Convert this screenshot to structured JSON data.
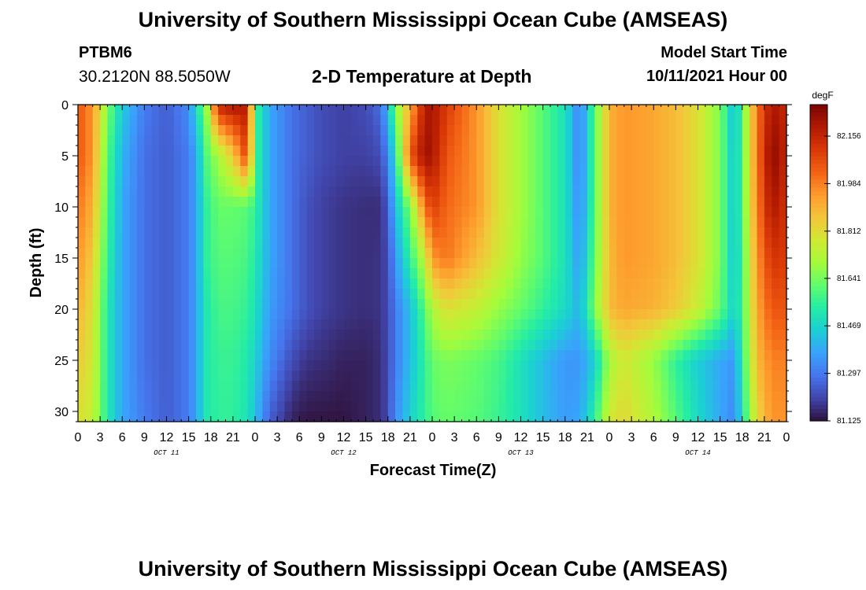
{
  "header": {
    "title": "University of Southern Mississippi Ocean Cube (AMSEAS)",
    "station_id": "PTBM6",
    "coordinates": "30.2120N  88.5050W",
    "chart_title": "2-D Temperature at Depth",
    "model_start_label": "Model Start Time",
    "model_start_value": "10/11/2021 Hour 00"
  },
  "footer": {
    "title": "University of Southern Mississippi Ocean Cube (AMSEAS)"
  },
  "chart_data": {
    "type": "heatmap",
    "title": "2-D Temperature at Depth",
    "xlabel": "Forecast Time(Z)",
    "ylabel": "Depth (ft)",
    "x_unit": "hours since model start",
    "xlim": [
      0,
      96
    ],
    "ylim": [
      0,
      31
    ],
    "y_inverted": true,
    "x_tick_labels": [
      "0",
      "3",
      "6",
      "9",
      "12",
      "15",
      "18",
      "21",
      "0",
      "3",
      "6",
      "9",
      "12",
      "15",
      "18",
      "21",
      "0",
      "3",
      "6",
      "9",
      "12",
      "15",
      "18",
      "21",
      "0",
      "3",
      "6",
      "9",
      "12",
      "15",
      "18",
      "21",
      "0"
    ],
    "day_labels": [
      {
        "label": "OCT 11",
        "hour": 12
      },
      {
        "label": "OCT 12",
        "hour": 36
      },
      {
        "label": "OCT 13",
        "hour": 60
      },
      {
        "label": "OCT 14",
        "hour": 84
      }
    ],
    "y_ticks": [
      0,
      5,
      10,
      15,
      20,
      25,
      30
    ],
    "colorbar": {
      "unit": "degF",
      "min": 81.125,
      "max": 82.27,
      "tick_values": [
        82.156,
        81.984,
        81.812,
        81.641,
        81.469,
        81.297,
        81.125
      ],
      "colors": [
        "#30123b",
        "#4145ab",
        "#4675ed",
        "#39a2fc",
        "#1bcfd4",
        "#24eca6",
        "#61fc6c",
        "#a4fc3b",
        "#d1e834",
        "#f3c63a",
        "#fe9b2d",
        "#f36315",
        "#d93806",
        "#b11901",
        "#7a0402"
      ]
    },
    "temperature_field_degF": {
      "hours": [
        0,
        2,
        4,
        6,
        9,
        12,
        15,
        16,
        17.5,
        19,
        21,
        23,
        24,
        26,
        29,
        31,
        33,
        36,
        39,
        41,
        42,
        43,
        45,
        47,
        48,
        50,
        54,
        57,
        60,
        63,
        66,
        68,
        70,
        72,
        74,
        78,
        81,
        84,
        87,
        89,
        90,
        92,
        94,
        96
      ],
      "depths_ft": [
        0,
        5,
        10,
        15,
        20,
        25,
        31
      ],
      "values": [
        [
          82.05,
          81.95,
          81.65,
          81.45,
          81.3,
          81.25,
          81.33,
          81.48,
          81.7,
          82.15,
          82.2,
          82.18,
          81.58,
          81.38,
          81.28,
          81.25,
          81.22,
          81.2,
          81.22,
          81.28,
          81.42,
          81.65,
          81.9,
          82.18,
          82.2,
          82.1,
          81.95,
          81.8,
          81.7,
          81.6,
          81.5,
          81.3,
          81.6,
          81.9,
          81.95,
          81.92,
          81.88,
          81.8,
          81.65,
          81.4,
          81.6,
          82.0,
          82.2,
          82.15
        ],
        [
          82.05,
          81.95,
          81.6,
          81.4,
          81.28,
          81.25,
          81.3,
          81.38,
          81.6,
          81.7,
          81.85,
          82.1,
          81.58,
          81.38,
          81.28,
          81.25,
          81.22,
          81.2,
          81.2,
          81.22,
          81.32,
          81.5,
          82.05,
          82.22,
          82.2,
          82.05,
          81.95,
          81.8,
          81.7,
          81.6,
          81.5,
          81.3,
          81.6,
          81.9,
          81.95,
          81.92,
          81.88,
          81.8,
          81.65,
          81.42,
          81.6,
          82.0,
          82.25,
          82.15
        ],
        [
          82.0,
          81.9,
          81.58,
          81.38,
          81.28,
          81.25,
          81.3,
          81.38,
          81.55,
          81.62,
          81.62,
          81.6,
          81.55,
          81.38,
          81.28,
          81.23,
          81.2,
          81.18,
          81.17,
          81.17,
          81.25,
          81.42,
          81.65,
          82.0,
          82.1,
          82.02,
          81.95,
          81.8,
          81.7,
          81.6,
          81.5,
          81.32,
          81.6,
          81.9,
          81.95,
          81.92,
          81.88,
          81.8,
          81.65,
          81.42,
          81.6,
          81.98,
          82.2,
          82.12
        ],
        [
          81.95,
          81.85,
          81.55,
          81.38,
          81.28,
          81.25,
          81.3,
          81.38,
          81.55,
          81.6,
          81.6,
          81.58,
          81.52,
          81.38,
          81.28,
          81.23,
          81.2,
          81.18,
          81.17,
          81.18,
          81.22,
          81.35,
          81.55,
          81.75,
          81.95,
          82.0,
          81.88,
          81.78,
          81.68,
          81.6,
          81.5,
          81.35,
          81.62,
          81.88,
          81.95,
          81.92,
          81.88,
          81.8,
          81.65,
          81.42,
          81.58,
          81.95,
          82.12,
          82.1
        ],
        [
          81.9,
          81.8,
          81.52,
          81.38,
          81.28,
          81.25,
          81.3,
          81.38,
          81.52,
          81.58,
          81.58,
          81.55,
          81.5,
          81.36,
          81.28,
          81.23,
          81.2,
          81.18,
          81.17,
          81.18,
          81.22,
          81.3,
          81.42,
          81.6,
          81.72,
          81.8,
          81.75,
          81.68,
          81.62,
          81.55,
          81.48,
          81.4,
          81.65,
          81.88,
          81.92,
          81.9,
          81.85,
          81.76,
          81.62,
          81.45,
          81.58,
          81.92,
          82.05,
          82.05
        ],
        [
          81.85,
          81.78,
          81.52,
          81.38,
          81.28,
          81.25,
          81.3,
          81.38,
          81.52,
          81.56,
          81.56,
          81.52,
          81.46,
          81.33,
          81.22,
          81.18,
          81.17,
          81.15,
          81.15,
          81.17,
          81.22,
          81.3,
          81.42,
          81.55,
          81.62,
          81.65,
          81.62,
          81.58,
          81.5,
          81.42,
          81.35,
          81.35,
          81.45,
          81.7,
          81.78,
          81.68,
          81.55,
          81.45,
          81.38,
          81.35,
          81.55,
          81.88,
          81.98,
          81.98
        ],
        [
          81.8,
          81.75,
          81.52,
          81.38,
          81.3,
          81.25,
          81.3,
          81.38,
          81.52,
          81.55,
          81.55,
          81.5,
          81.42,
          81.25,
          81.15,
          81.13,
          81.13,
          81.13,
          81.15,
          81.17,
          81.22,
          81.33,
          81.46,
          81.55,
          81.6,
          81.62,
          81.6,
          81.56,
          81.5,
          81.42,
          81.36,
          81.38,
          81.55,
          81.78,
          81.82,
          81.72,
          81.6,
          81.48,
          81.38,
          81.32,
          81.5,
          81.82,
          81.95,
          81.95
        ]
      ]
    }
  }
}
